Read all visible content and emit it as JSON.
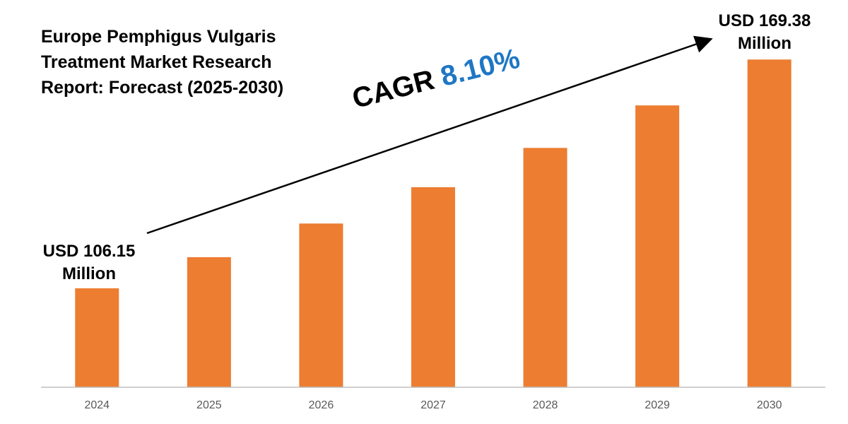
{
  "title": "Europe Pemphigus Vulgaris Treatment Market Research Report: Forecast (2025-2030)",
  "cagr": {
    "label": "CAGR",
    "value": "8.10%"
  },
  "first_label": {
    "line1": "USD 106.15",
    "line2": "Million"
  },
  "last_label": {
    "line1": "USD 169.38",
    "line2": "Million"
  },
  "colors": {
    "bar": "#ed7d31",
    "cagr_value": "#1f77c4",
    "axis": "#bfbfbf",
    "tick_text": "#595959"
  },
  "chart_data": {
    "type": "bar",
    "categories": [
      "2024",
      "2025",
      "2026",
      "2027",
      "2028",
      "2029",
      "2030"
    ],
    "values": [
      106.15,
      114.75,
      124.05,
      134.1,
      144.95,
      156.7,
      169.38
    ],
    "annotations": [
      "USD 106.15 Million",
      "USD 169.38 Million",
      "CAGR 8.10%"
    ]
  }
}
